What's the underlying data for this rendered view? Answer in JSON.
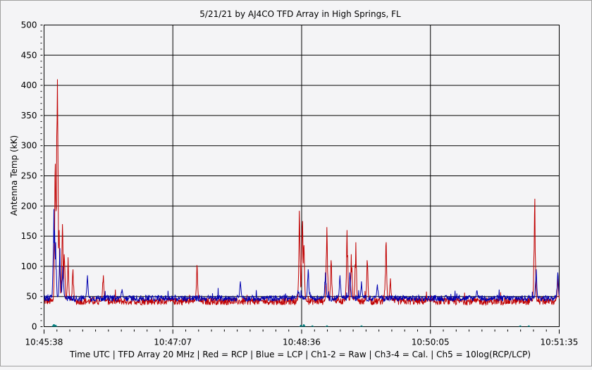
{
  "chart_data": {
    "type": "line",
    "title": "5/21/21  by  AJ4CO TFD Array  in  High Springs, FL",
    "xlabel": "Time UTC | TFD Array 20 MHz | Red = RCP | Blue = LCP | Ch1-2 = Raw | Ch3-4 = Cal. | Ch5 = 10log(RCP/LCP)",
    "ylabel": "Antenna Temp (kK)",
    "ylim": [
      0,
      500
    ],
    "yticks": [
      "0",
      "50",
      "100",
      "150",
      "200",
      "250",
      "300",
      "350",
      "400",
      "450",
      "500"
    ],
    "xlim_seconds": [
      0,
      357
    ],
    "xticks": [
      "10:45:38",
      "10:47:07",
      "10:48:36",
      "10:50:05",
      "10:51:35"
    ],
    "grid": true,
    "series": [
      {
        "name": "RCP",
        "color": "#c00000",
        "baseline": 42,
        "noise": 6,
        "spikes": [
          [
            7.8,
            270
          ],
          [
            8.8,
            315
          ],
          [
            9.3,
            410
          ],
          [
            10.5,
            160
          ],
          [
            12.7,
            170
          ],
          [
            14,
            120
          ],
          [
            16.6,
            115
          ],
          [
            20,
            95
          ],
          [
            41,
            85
          ],
          [
            106,
            102
          ],
          [
            177,
            192
          ],
          [
            179,
            175
          ],
          [
            180,
            135
          ],
          [
            196,
            165
          ],
          [
            199,
            110
          ],
          [
            210,
            160
          ],
          [
            213,
            120
          ],
          [
            216,
            140
          ],
          [
            224,
            110
          ],
          [
            237,
            140
          ],
          [
            240,
            80
          ],
          [
            340,
            212
          ],
          [
            356,
            80
          ]
        ]
      },
      {
        "name": "LCP",
        "color": "#0000b0",
        "baseline": 47,
        "noise": 5,
        "spikes": [
          [
            6.8,
            195
          ],
          [
            7.3,
            160
          ],
          [
            8,
            140
          ],
          [
            11,
            130
          ],
          [
            13,
            100
          ],
          [
            30,
            85
          ],
          [
            54,
            62
          ],
          [
            136,
            75
          ],
          [
            176,
            60
          ],
          [
            183,
            95
          ],
          [
            195,
            90
          ],
          [
            205,
            85
          ],
          [
            212,
            90
          ],
          [
            220,
            75
          ],
          [
            231,
            70
          ],
          [
            300,
            60
          ],
          [
            341,
            95
          ],
          [
            356,
            90
          ]
        ]
      },
      {
        "name": "Ch5",
        "color": "#008080",
        "baseline": 0,
        "noise": 0,
        "spikes": [
          [
            6.5,
            4
          ],
          [
            7.2,
            4
          ],
          [
            8,
            3
          ],
          [
            178,
            3
          ],
          [
            180,
            4
          ],
          [
            186,
            2
          ],
          [
            196,
            2
          ],
          [
            220,
            2
          ],
          [
            330,
            2
          ],
          [
            336,
            2
          ]
        ]
      }
    ]
  }
}
